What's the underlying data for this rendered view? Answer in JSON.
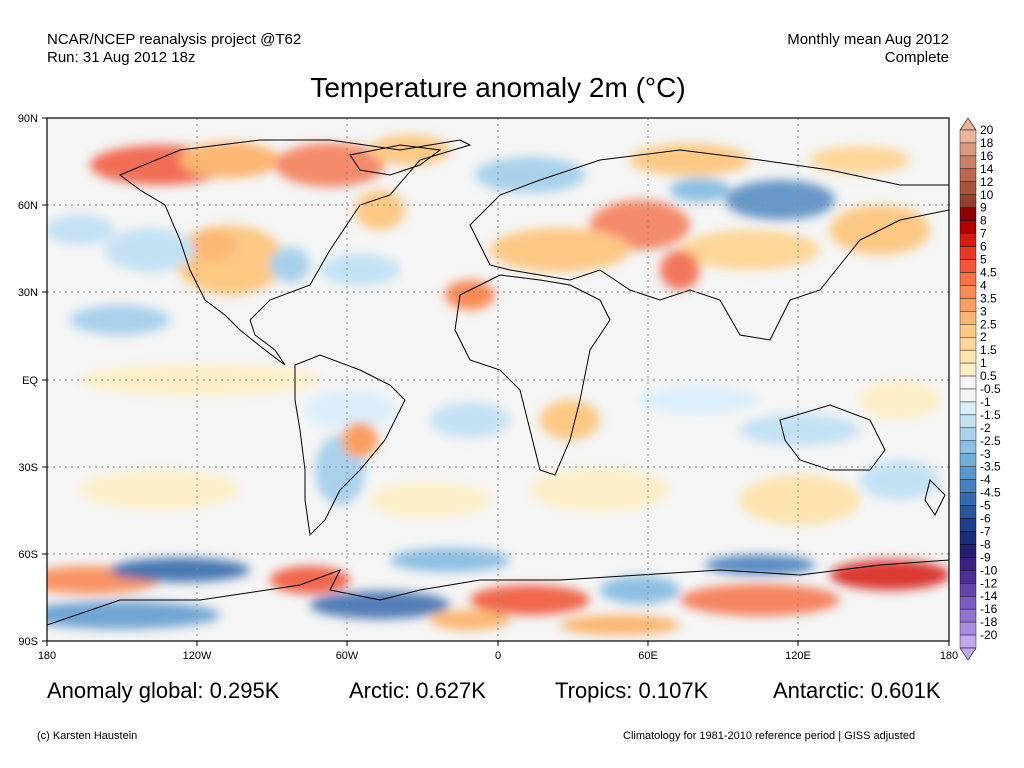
{
  "header": {
    "left_line1": "NCAR/NCEP reanalysis project @T62",
    "left_line2": "Run: 31 Aug 2012 18z",
    "right_line1": "Monthly mean Aug 2012",
    "right_line2": "Complete"
  },
  "title": "Temperature anomaly 2m (°C)",
  "axes": {
    "lat_labels": [
      "90N",
      "60N",
      "30N",
      "EQ",
      "30S",
      "60S",
      "90S"
    ],
    "lon_labels": [
      "180",
      "120W",
      "60W",
      "0",
      "60E",
      "120E",
      "180"
    ]
  },
  "colorbar": {
    "labels": [
      "20",
      "18",
      "16",
      "14",
      "12",
      "10",
      "9",
      "8",
      "7",
      "6",
      "5",
      "4.5",
      "4",
      "3.5",
      "3",
      "2.5",
      "2",
      "1.5",
      "1",
      "0.5",
      "-0.5",
      "-1",
      "-1.5",
      "-2",
      "-2.5",
      "-3",
      "-3.5",
      "-4",
      "-4.5",
      "-5",
      "-6",
      "-7",
      "-8",
      "-9",
      "-10",
      "-12",
      "-14",
      "-16",
      "-18",
      "-20"
    ],
    "colors": [
      "#e8b49c",
      "#d99b80",
      "#c98064",
      "#b9684e",
      "#a8543e",
      "#953f2e",
      "#8b0000",
      "#b40000",
      "#d41a12",
      "#e63a24",
      "#f0563a",
      "#f47048",
      "#f88a54",
      "#f9a062",
      "#fbb672",
      "#fcc884",
      "#fdd698",
      "#fde3ae",
      "#fdefc8",
      "#f5f5f5",
      "#f5f5f5",
      "#dbeefa",
      "#c4e1f4",
      "#a9d1ec",
      "#8dbfe2",
      "#74acd8",
      "#5b97cc",
      "#4680bd",
      "#3569ab",
      "#2a5499",
      "#1f3f88",
      "#1a2e78",
      "#231f6e",
      "#3a2180",
      "#4d2e95",
      "#6343ac",
      "#7a5cc0",
      "#9174d1",
      "#a98de0",
      "#c2a9ee"
    ]
  },
  "stats": {
    "global": "Anomaly global: 0.295K",
    "arctic": "Arctic: 0.627K",
    "tropics": "Tropics: 0.107K",
    "antarctic": "Antarctic: 0.601K"
  },
  "footer": {
    "credit": "(c) Karsten Haustein",
    "note": "Climatology for 1981-2010 reference period | GISS adjusted"
  }
}
